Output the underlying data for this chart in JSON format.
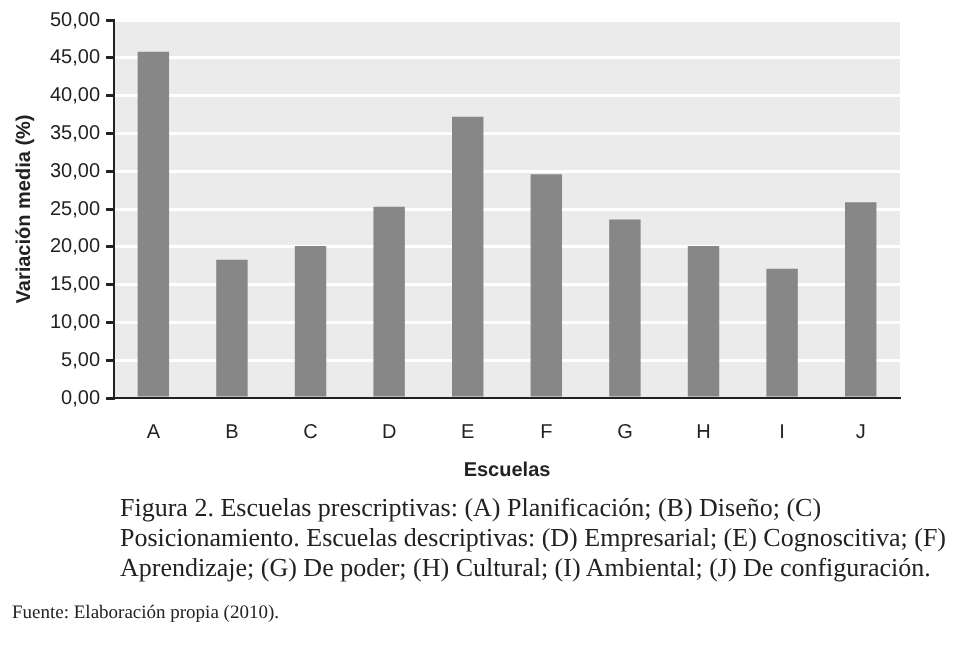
{
  "chart_data": {
    "type": "bar",
    "xlabel": "Escuelas",
    "ylabel": "Variación media (%)",
    "categories": [
      "A",
      "B",
      "C",
      "D",
      "E",
      "F",
      "G",
      "H",
      "I",
      "J"
    ],
    "values": [
      45.8,
      18.3,
      20.1,
      25.3,
      37.2,
      29.6,
      23.6,
      20.1,
      17.1,
      25.9
    ],
    "color": "#878787",
    "ylim": [
      0,
      50
    ],
    "yticks": [
      {
        "value": 0,
        "label": "0,00"
      },
      {
        "value": 5,
        "label": "5,00"
      },
      {
        "value": 10,
        "label": "10,00"
      },
      {
        "value": 15,
        "label": "15,00"
      },
      {
        "value": 20,
        "label": "20,00"
      },
      {
        "value": 25,
        "label": "25,00"
      },
      {
        "value": 30,
        "label": "30,00"
      },
      {
        "value": 35,
        "label": "35,00"
      },
      {
        "value": 40,
        "label": "40,00"
      },
      {
        "value": 45,
        "label": "45,00"
      },
      {
        "value": 50,
        "label": "50,00"
      }
    ],
    "grid": "y",
    "annotations": [
      "Figura 2. Escuelas prescriptivas: (A) Planificación; (B) Diseño; (C) Posicionamiento. Escuelas descriptivas: (D) Empresarial; (E) Cognoscitiva; (F) Aprendizaje; (G) De poder; (H) Cultural; (I) Ambiental; (J) De configuración.",
      "Fuente: Elaboración propia (2010)."
    ]
  }
}
